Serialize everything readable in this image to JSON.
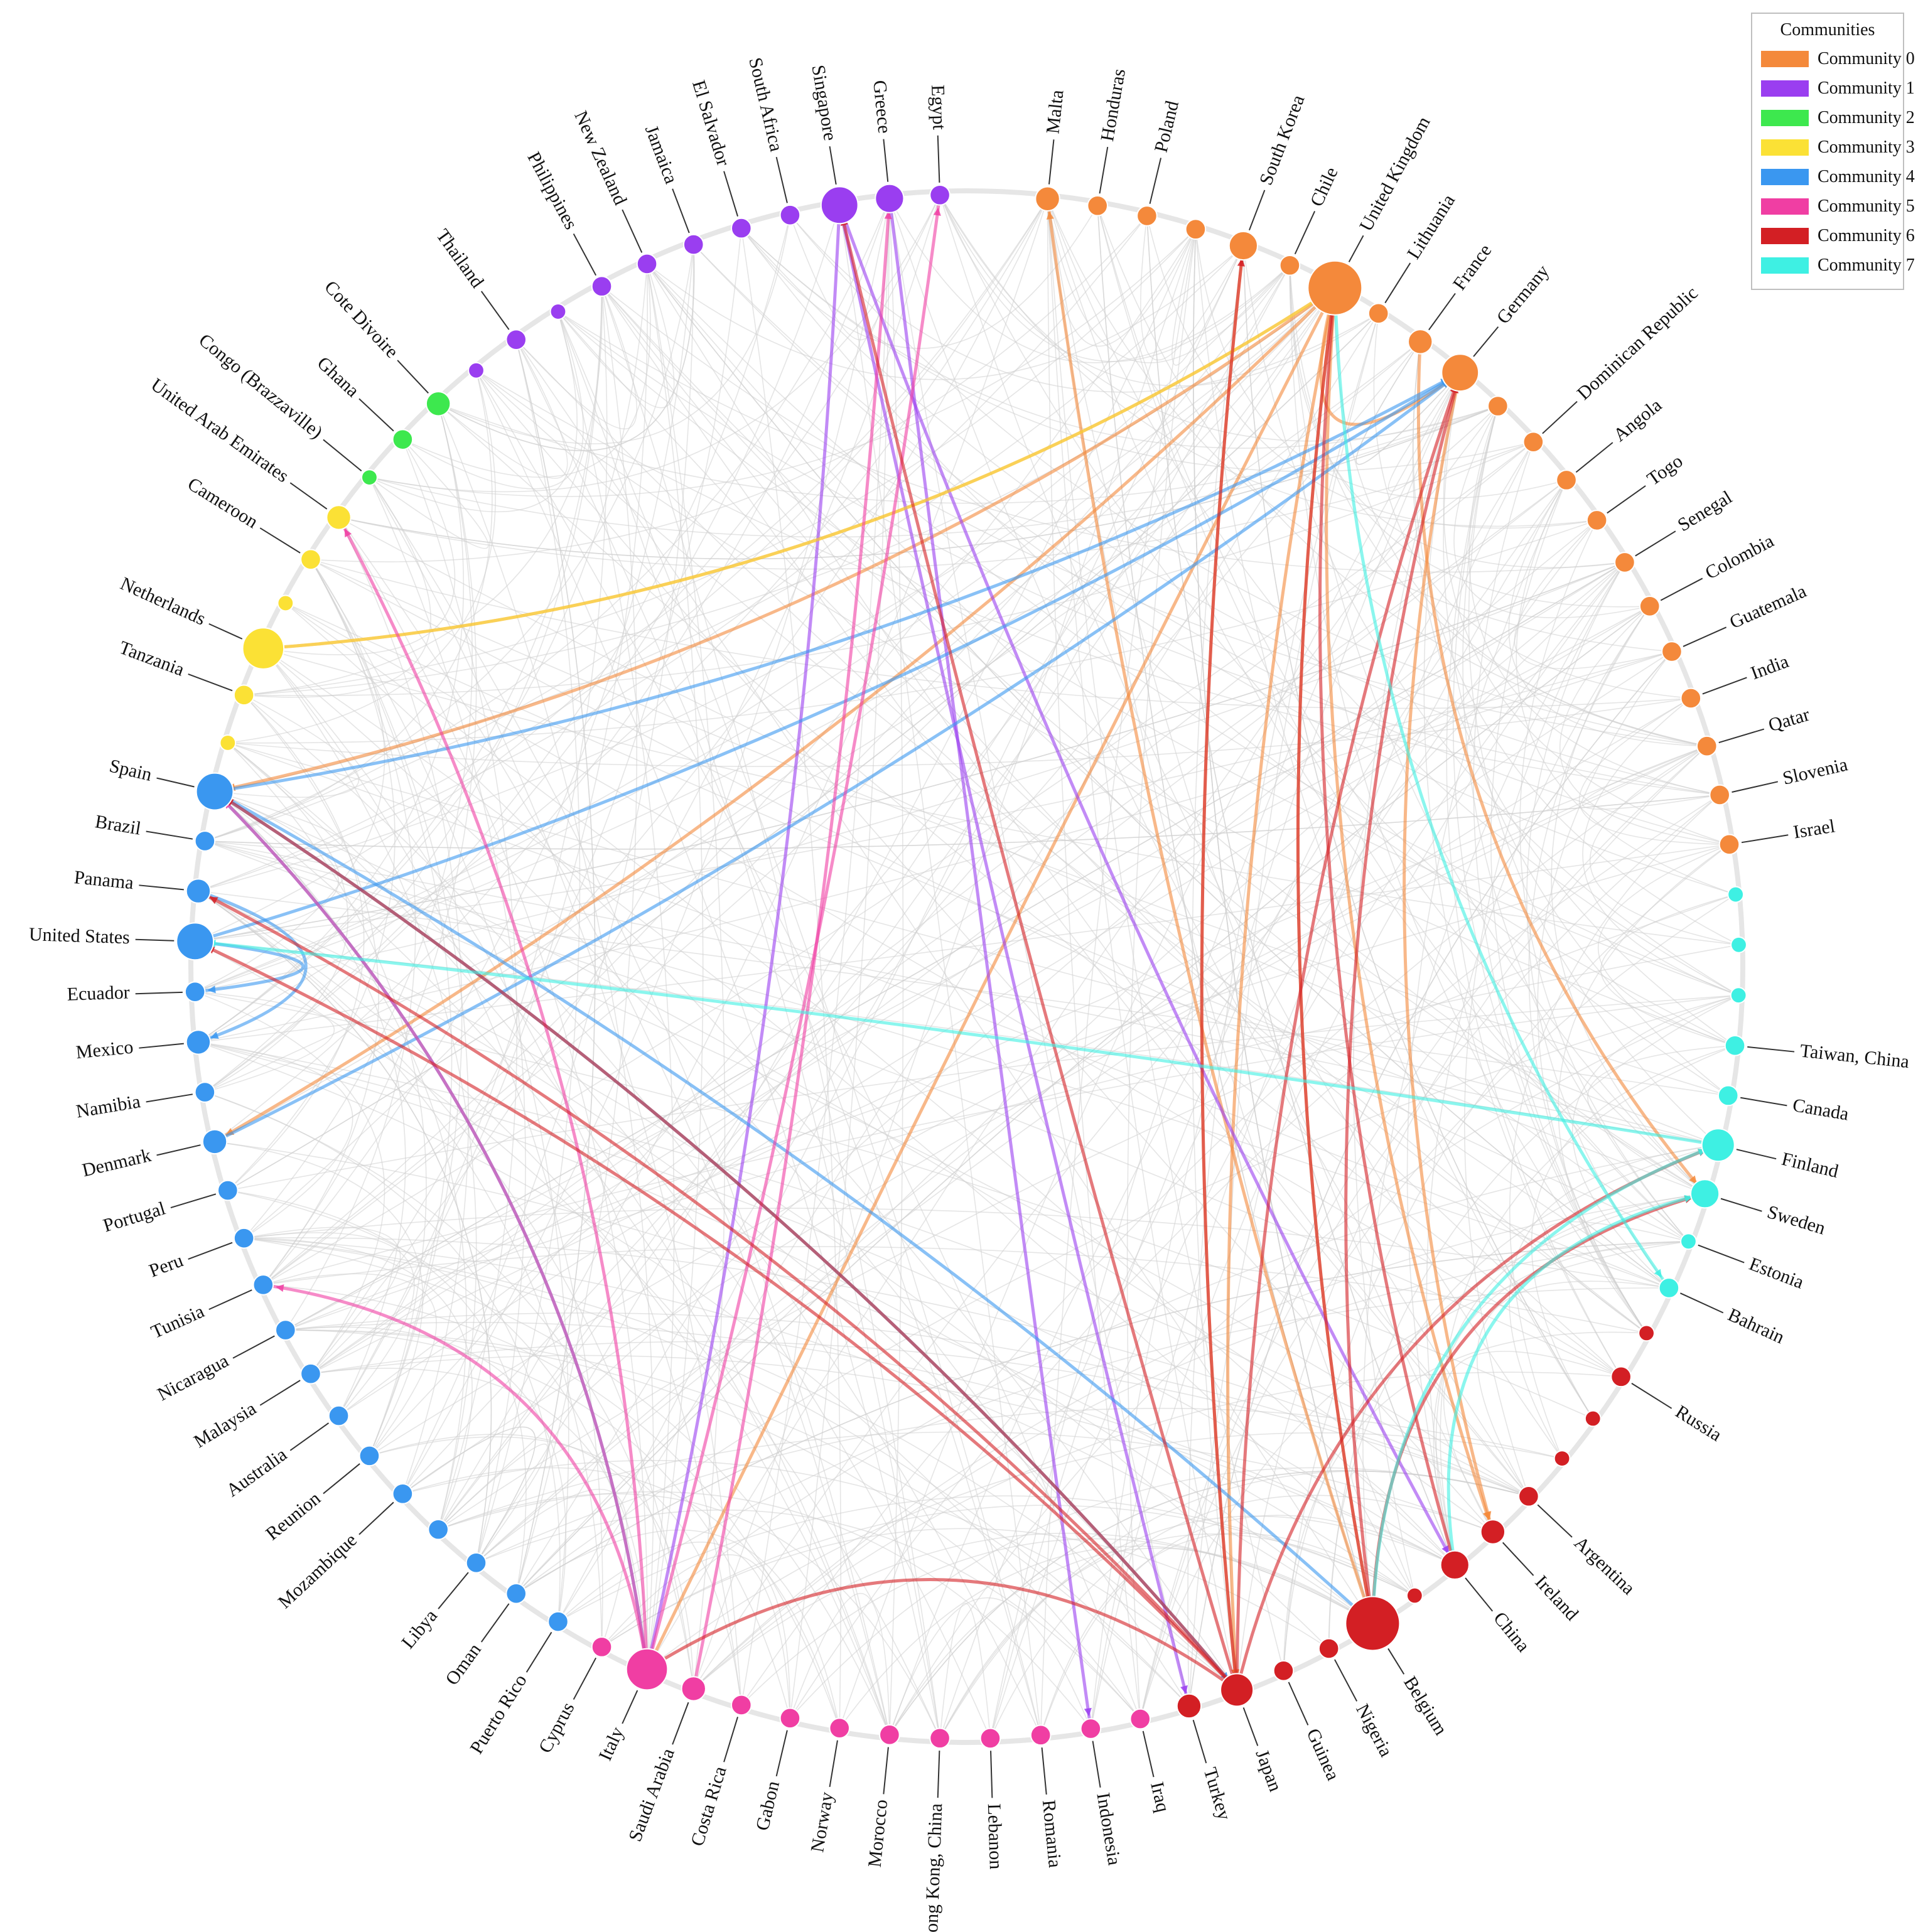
{
  "legend": {
    "title": "Communities",
    "items": [
      {
        "label": "Community 0",
        "color": "#f4893b"
      },
      {
        "label": "Community 1",
        "color": "#9a3ef0"
      },
      {
        "label": "Community 2",
        "color": "#3de84e"
      },
      {
        "label": "Community 3",
        "color": "#fbe135"
      },
      {
        "label": "Community 4",
        "color": "#3a97f0"
      },
      {
        "label": "Community 5",
        "color": "#f03ea3"
      },
      {
        "label": "Community 6",
        "color": "#d31f24"
      },
      {
        "label": "Community 7",
        "color": "#3ef0e3"
      }
    ]
  },
  "nodes": [
    {
      "label": "Malta",
      "community": 0,
      "weight": 3
    },
    {
      "label": "Honduras",
      "community": 0,
      "weight": 2
    },
    {
      "label": "Poland",
      "community": 0,
      "weight": 2
    },
    {
      "label": "",
      "community": 0,
      "weight": 2
    },
    {
      "label": "South Korea",
      "community": 0,
      "weight": 4
    },
    {
      "label": "Chile",
      "community": 0,
      "weight": 2
    },
    {
      "label": "United Kingdom",
      "community": 0,
      "weight": 10
    },
    {
      "label": "Lithuania",
      "community": 0,
      "weight": 2
    },
    {
      "label": "France",
      "community": 0,
      "weight": 3
    },
    {
      "label": "Germany",
      "community": 0,
      "weight": 6
    },
    {
      "label": "",
      "community": 0,
      "weight": 2
    },
    {
      "label": "Dominican Republic",
      "community": 0,
      "weight": 2
    },
    {
      "label": "Angola",
      "community": 0,
      "weight": 2
    },
    {
      "label": "Togo",
      "community": 0,
      "weight": 2
    },
    {
      "label": "Senegal",
      "community": 0,
      "weight": 2
    },
    {
      "label": "Colombia",
      "community": 0,
      "weight": 2
    },
    {
      "label": "Guatemala",
      "community": 0,
      "weight": 2
    },
    {
      "label": "India",
      "community": 0,
      "weight": 2
    },
    {
      "label": "Qatar",
      "community": 0,
      "weight": 2
    },
    {
      "label": "Slovenia",
      "community": 0,
      "weight": 2
    },
    {
      "label": "Israel",
      "community": 0,
      "weight": 2
    },
    {
      "label": "",
      "community": 7,
      "weight": 1
    },
    {
      "label": "",
      "community": 7,
      "weight": 1
    },
    {
      "label": "",
      "community": 7,
      "weight": 1
    },
    {
      "label": "Taiwan, China",
      "community": 7,
      "weight": 2
    },
    {
      "label": "Canada",
      "community": 7,
      "weight": 2
    },
    {
      "label": "Finland",
      "community": 7,
      "weight": 5
    },
    {
      "label": "Sweden",
      "community": 7,
      "weight": 4
    },
    {
      "label": "Estonia",
      "community": 7,
      "weight": 1
    },
    {
      "label": "Bahrain",
      "community": 7,
      "weight": 2
    },
    {
      "label": "",
      "community": 6,
      "weight": 1
    },
    {
      "label": "Russia",
      "community": 6,
      "weight": 2
    },
    {
      "label": "",
      "community": 6,
      "weight": 1
    },
    {
      "label": "",
      "community": 6,
      "weight": 1
    },
    {
      "label": "Argentina",
      "community": 6,
      "weight": 2
    },
    {
      "label": "Ireland",
      "community": 6,
      "weight": 3
    },
    {
      "label": "China",
      "community": 6,
      "weight": 4
    },
    {
      "label": "",
      "community": 6,
      "weight": 1
    },
    {
      "label": "Belgium",
      "community": 6,
      "weight": 10
    },
    {
      "label": "Nigeria",
      "community": 6,
      "weight": 2
    },
    {
      "label": "Guinea",
      "community": 6,
      "weight": 2
    },
    {
      "label": "Japan",
      "community": 6,
      "weight": 5
    },
    {
      "label": "Turkey",
      "community": 6,
      "weight": 3
    },
    {
      "label": "Iraq",
      "community": 5,
      "weight": 2
    },
    {
      "label": "Indonesia",
      "community": 5,
      "weight": 2
    },
    {
      "label": "Romania",
      "community": 5,
      "weight": 2
    },
    {
      "label": "Lebanon",
      "community": 5,
      "weight": 2
    },
    {
      "label": "Hong Kong, China",
      "community": 5,
      "weight": 2
    },
    {
      "label": "Morocco",
      "community": 5,
      "weight": 2
    },
    {
      "label": "Norway",
      "community": 5,
      "weight": 2
    },
    {
      "label": "Gabon",
      "community": 5,
      "weight": 2
    },
    {
      "label": "Costa Rica",
      "community": 5,
      "weight": 2
    },
    {
      "label": "Saudi Arabia",
      "community": 5,
      "weight": 3
    },
    {
      "label": "Italy",
      "community": 5,
      "weight": 7
    },
    {
      "label": "Cyprus",
      "community": 5,
      "weight": 2
    },
    {
      "label": "Puerto Rico",
      "community": 4,
      "weight": 2
    },
    {
      "label": "Oman",
      "community": 4,
      "weight": 2
    },
    {
      "label": "Libya",
      "community": 4,
      "weight": 2
    },
    {
      "label": "",
      "community": 4,
      "weight": 2
    },
    {
      "label": "Mozambique",
      "community": 4,
      "weight": 2
    },
    {
      "label": "Reunion",
      "community": 4,
      "weight": 2
    },
    {
      "label": "Australia",
      "community": 4,
      "weight": 2
    },
    {
      "label": "Malaysia",
      "community": 4,
      "weight": 2
    },
    {
      "label": "Nicaragua",
      "community": 4,
      "weight": 2
    },
    {
      "label": "Tunisia",
      "community": 4,
      "weight": 2
    },
    {
      "label": "Peru",
      "community": 4,
      "weight": 2
    },
    {
      "label": "Portugal",
      "community": 4,
      "weight": 2
    },
    {
      "label": "Denmark",
      "community": 4,
      "weight": 3
    },
    {
      "label": "Namibia",
      "community": 4,
      "weight": 2
    },
    {
      "label": "Mexico",
      "community": 4,
      "weight": 3
    },
    {
      "label": "Ecuador",
      "community": 4,
      "weight": 2
    },
    {
      "label": "United States",
      "community": 4,
      "weight": 6
    },
    {
      "label": "Panama",
      "community": 4,
      "weight": 3
    },
    {
      "label": "Brazil",
      "community": 4,
      "weight": 2
    },
    {
      "label": "Spain",
      "community": 4,
      "weight": 6
    },
    {
      "label": "",
      "community": 3,
      "weight": 1
    },
    {
      "label": "Tanzania",
      "community": 3,
      "weight": 2
    },
    {
      "label": "Netherlands",
      "community": 3,
      "weight": 7
    },
    {
      "label": "",
      "community": 3,
      "weight": 1
    },
    {
      "label": "Cameroon",
      "community": 3,
      "weight": 2
    },
    {
      "label": "United Arab Emirates",
      "community": 3,
      "weight": 3
    },
    {
      "label": "Congo (Brazzaville)",
      "community": 2,
      "weight": 1
    },
    {
      "label": "Ghana",
      "community": 2,
      "weight": 2
    },
    {
      "label": "Cote Divoire",
      "community": 2,
      "weight": 3
    },
    {
      "label": "",
      "community": 1,
      "weight": 1
    },
    {
      "label": "Thailand",
      "community": 1,
      "weight": 2
    },
    {
      "label": "",
      "community": 1,
      "weight": 1
    },
    {
      "label": "Philippines",
      "community": 1,
      "weight": 2
    },
    {
      "label": "New Zealand",
      "community": 1,
      "weight": 2
    },
    {
      "label": "Jamaica",
      "community": 1,
      "weight": 2
    },
    {
      "label": "El Salvador",
      "community": 1,
      "weight": 2
    },
    {
      "label": "South Africa",
      "community": 1,
      "weight": 2
    },
    {
      "label": "Singapore",
      "community": 1,
      "weight": 6
    },
    {
      "label": "Greece",
      "community": 1,
      "weight": 4
    },
    {
      "label": "Egypt",
      "community": 1,
      "weight": 2
    }
  ],
  "highlighted_edges": [
    {
      "source": "United Kingdom",
      "target": "Netherlands",
      "community": 0
    },
    {
      "source": "United Kingdom",
      "target": "Spain",
      "community": 0
    },
    {
      "source": "United Kingdom",
      "target": "Denmark",
      "community": 0
    },
    {
      "source": "United Kingdom",
      "target": "Italy",
      "community": 0
    },
    {
      "source": "United Kingdom",
      "target": "Belgium",
      "community": 0
    },
    {
      "source": "United Kingdom",
      "target": "Ireland",
      "community": 0
    },
    {
      "source": "United Kingdom",
      "target": "Japan",
      "community": 0
    },
    {
      "source": "South Korea",
      "target": "Japan",
      "community": 0
    },
    {
      "source": "Germany",
      "target": "Ireland",
      "community": 0
    },
    {
      "source": "France",
      "target": "Sweden",
      "community": 0
    },
    {
      "source": "Belgium",
      "target": "Malta",
      "community": 0
    },
    {
      "source": "United Kingdom",
      "target": "Germany",
      "community": 0
    },
    {
      "source": "Singapore",
      "target": "Italy",
      "community": 1
    },
    {
      "source": "Singapore",
      "target": "Turkey",
      "community": 1
    },
    {
      "source": "Singapore",
      "target": "China",
      "community": 1
    },
    {
      "source": "Greece",
      "target": "Indonesia",
      "community": 1
    },
    {
      "source": "Netherlands",
      "target": "United Kingdom",
      "community": 3
    },
    {
      "source": "United States",
      "target": "Germany",
      "community": 4
    },
    {
      "source": "Denmark",
      "target": "Germany",
      "community": 4
    },
    {
      "source": "Spain",
      "target": "Germany",
      "community": 4
    },
    {
      "source": "Spain",
      "target": "Belgium",
      "community": 4
    },
    {
      "source": "Spain",
      "target": "Italy",
      "community": 4
    },
    {
      "source": "Spain",
      "target": "Japan",
      "community": 4
    },
    {
      "source": "United States",
      "target": "Ecuador",
      "community": 4
    },
    {
      "source": "Panama",
      "target": "Mexico",
      "community": 4
    },
    {
      "source": "Italy",
      "target": "Spain",
      "community": 5
    },
    {
      "source": "Italy",
      "target": "Tunisia",
      "community": 5
    },
    {
      "source": "Saudi Arabia",
      "target": "Greece",
      "community": 5
    },
    {
      "source": "Italy",
      "target": "Egypt",
      "community": 5
    },
    {
      "source": "Italy",
      "target": "United Arab Emirates",
      "community": 5
    },
    {
      "source": "Japan",
      "target": "Spain",
      "community": 6
    },
    {
      "source": "Japan",
      "target": "Panama",
      "community": 6
    },
    {
      "source": "Japan",
      "target": "United States",
      "community": 6
    },
    {
      "source": "Japan",
      "target": "Italy",
      "community": 6
    },
    {
      "source": "Japan",
      "target": "Singapore",
      "community": 6
    },
    {
      "source": "Japan",
      "target": "Germany",
      "community": 6
    },
    {
      "source": "Japan",
      "target": "South Korea",
      "community": 6
    },
    {
      "source": "Belgium",
      "target": "United Kingdom",
      "community": 6
    },
    {
      "source": "Belgium",
      "target": "Germany",
      "community": 6
    },
    {
      "source": "China",
      "target": "United Kingdom",
      "community": 6
    },
    {
      "source": "Japan",
      "target": "Finland",
      "community": 6
    },
    {
      "source": "Belgium",
      "target": "Sweden",
      "community": 6
    },
    {
      "source": "Finland",
      "target": "United States",
      "community": 7
    },
    {
      "source": "Belgium",
      "target": "Finland",
      "community": 7
    },
    {
      "source": "China",
      "target": "Sweden",
      "community": 7
    },
    {
      "source": "United Kingdom",
      "target": "Bahrain",
      "community": 7
    }
  ]
}
